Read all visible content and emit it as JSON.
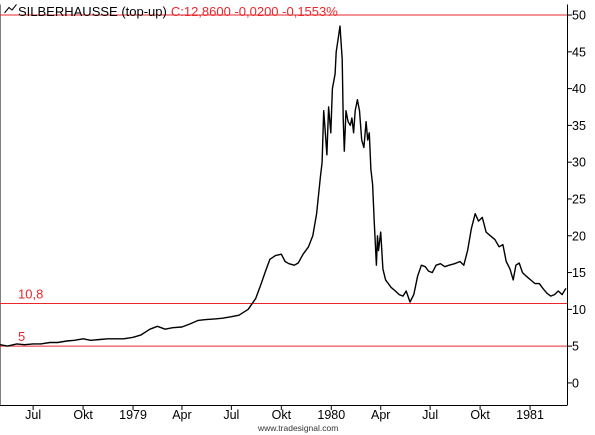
{
  "header": {
    "symbol": "SILBERHAUSSE (top-up)",
    "quote": "C:12,8600 -0,0200 -0,1553%",
    "symbol_color": "#000000",
    "quote_color": "#e8272c",
    "icon": "line-chart-icon"
  },
  "watermark": "www.tradesignal.com",
  "colors": {
    "line": "#000000",
    "hline": "#e8272c",
    "background": "#ffffff"
  },
  "chart_data": {
    "type": "line",
    "title": "SILBERHAUSSE (top-up)",
    "ylim": [
      -3,
      51.5
    ],
    "yticks": [
      {
        "label": "50",
        "value": 50
      },
      {
        "label": "45",
        "value": 45
      },
      {
        "label": "40",
        "value": 40
      },
      {
        "label": "35",
        "value": 35
      },
      {
        "label": "30",
        "value": 30
      },
      {
        "label": "25",
        "value": 25
      },
      {
        "label": "20",
        "value": 20
      },
      {
        "label": "15",
        "value": 15
      },
      {
        "label": "10",
        "value": 10
      },
      {
        "label": "5",
        "value": 5
      },
      {
        "label": "0",
        "value": 0
      }
    ],
    "x_range": [
      "1978-05-01",
      "1981-03-10"
    ],
    "xticks": [
      {
        "label": "Jul",
        "date": "1978-07-01"
      },
      {
        "label": "Okt",
        "date": "1978-10-01"
      },
      {
        "label": "1979",
        "date": "1979-01-01"
      },
      {
        "label": "Apr",
        "date": "1979-04-01"
      },
      {
        "label": "Jul",
        "date": "1979-07-01"
      },
      {
        "label": "Okt",
        "date": "1979-10-01"
      },
      {
        "label": "1980",
        "date": "1980-01-01"
      },
      {
        "label": "Apr",
        "date": "1980-04-01"
      },
      {
        "label": "Jul",
        "date": "1980-07-01"
      },
      {
        "label": "Okt",
        "date": "1980-10-01"
      },
      {
        "label": "1981",
        "date": "1981-01-01"
      }
    ],
    "hlines": [
      {
        "label": "",
        "value": 50
      },
      {
        "label": "10,8",
        "value": 10.8
      },
      {
        "label": "5",
        "value": 5
      }
    ],
    "series": [
      {
        "points": [
          [
            "1978-05-01",
            5.2
          ],
          [
            "1978-05-15",
            5.0
          ],
          [
            "1978-06-01",
            5.3
          ],
          [
            "1978-06-15",
            5.2
          ],
          [
            "1978-07-01",
            5.3
          ],
          [
            "1978-07-15",
            5.3
          ],
          [
            "1978-08-01",
            5.5
          ],
          [
            "1978-08-15",
            5.5
          ],
          [
            "1978-09-01",
            5.7
          ],
          [
            "1978-09-15",
            5.8
          ],
          [
            "1978-10-01",
            6.0
          ],
          [
            "1978-10-15",
            5.8
          ],
          [
            "1978-11-01",
            5.9
          ],
          [
            "1978-11-15",
            6.0
          ],
          [
            "1978-12-01",
            6.0
          ],
          [
            "1978-12-15",
            6.0
          ],
          [
            "1979-01-01",
            6.2
          ],
          [
            "1979-01-15",
            6.5
          ],
          [
            "1979-02-01",
            7.3
          ],
          [
            "1979-02-15",
            7.7
          ],
          [
            "1979-03-01",
            7.3
          ],
          [
            "1979-03-15",
            7.5
          ],
          [
            "1979-04-01",
            7.6
          ],
          [
            "1979-04-15",
            8.0
          ],
          [
            "1979-05-01",
            8.5
          ],
          [
            "1979-05-15",
            8.6
          ],
          [
            "1979-06-01",
            8.7
          ],
          [
            "1979-06-15",
            8.8
          ],
          [
            "1979-07-01",
            9.0
          ],
          [
            "1979-07-15",
            9.2
          ],
          [
            "1979-08-01",
            10.0
          ],
          [
            "1979-08-15",
            11.5
          ],
          [
            "1979-08-25",
            13.5
          ],
          [
            "1979-09-01",
            15.0
          ],
          [
            "1979-09-10",
            16.8
          ],
          [
            "1979-09-20",
            17.3
          ],
          [
            "1979-10-01",
            17.5
          ],
          [
            "1979-10-08",
            16.5
          ],
          [
            "1979-10-15",
            16.2
          ],
          [
            "1979-10-25",
            16.0
          ],
          [
            "1979-11-01",
            16.3
          ],
          [
            "1979-11-10",
            17.5
          ],
          [
            "1979-11-20",
            18.5
          ],
          [
            "1979-11-28",
            20.0
          ],
          [
            "1979-12-05",
            23.0
          ],
          [
            "1979-12-12",
            28.0
          ],
          [
            "1979-12-15",
            30.0
          ],
          [
            "1979-12-18",
            37.0
          ],
          [
            "1979-12-20",
            35.0
          ],
          [
            "1979-12-24",
            31.0
          ],
          [
            "1979-12-27",
            37.5
          ],
          [
            "1979-12-31",
            34.0
          ],
          [
            "1980-01-03",
            40.0
          ],
          [
            "1980-01-08",
            42.0
          ],
          [
            "1980-01-10",
            45.0
          ],
          [
            "1980-01-14",
            47.0
          ],
          [
            "1980-01-17",
            48.5
          ],
          [
            "1980-01-21",
            44.0
          ],
          [
            "1980-01-23",
            36.0
          ],
          [
            "1980-01-25",
            31.5
          ],
          [
            "1980-01-28",
            37.0
          ],
          [
            "1980-02-01",
            35.5
          ],
          [
            "1980-02-05",
            35.0
          ],
          [
            "1980-02-08",
            36.0
          ],
          [
            "1980-02-11",
            34.0
          ],
          [
            "1980-02-14",
            37.0
          ],
          [
            "1980-02-18",
            38.5
          ],
          [
            "1980-02-22",
            37.0
          ],
          [
            "1980-02-26",
            33.0
          ],
          [
            "1980-03-01",
            32.0
          ],
          [
            "1980-03-05",
            35.5
          ],
          [
            "1980-03-08",
            33.0
          ],
          [
            "1980-03-11",
            34.0
          ],
          [
            "1980-03-14",
            29.0
          ],
          [
            "1980-03-17",
            27.0
          ],
          [
            "1980-03-20",
            22.0
          ],
          [
            "1980-03-24",
            16.0
          ],
          [
            "1980-03-26",
            20.0
          ],
          [
            "1980-03-28",
            18.0
          ],
          [
            "1980-04-01",
            20.5
          ],
          [
            "1980-04-05",
            15.5
          ],
          [
            "1980-04-10",
            14.0
          ],
          [
            "1980-04-15",
            13.5
          ],
          [
            "1980-04-20",
            13.0
          ],
          [
            "1980-04-28",
            12.5
          ],
          [
            "1980-05-05",
            12.0
          ],
          [
            "1980-05-12",
            11.8
          ],
          [
            "1980-05-18",
            12.5
          ],
          [
            "1980-05-25",
            11.0
          ],
          [
            "1980-06-01",
            12.0
          ],
          [
            "1980-06-08",
            14.5
          ],
          [
            "1980-06-15",
            16.0
          ],
          [
            "1980-06-22",
            15.8
          ],
          [
            "1980-06-28",
            15.2
          ],
          [
            "1980-07-05",
            15.0
          ],
          [
            "1980-07-12",
            16.0
          ],
          [
            "1980-07-20",
            16.2
          ],
          [
            "1980-07-28",
            15.8
          ],
          [
            "1980-08-05",
            16.0
          ],
          [
            "1980-08-15",
            16.2
          ],
          [
            "1980-08-25",
            16.5
          ],
          [
            "1980-09-01",
            16.0
          ],
          [
            "1980-09-08",
            18.0
          ],
          [
            "1980-09-15",
            21.0
          ],
          [
            "1980-09-22",
            23.0
          ],
          [
            "1980-09-28",
            22.0
          ],
          [
            "1980-10-05",
            22.5
          ],
          [
            "1980-10-12",
            20.5
          ],
          [
            "1980-10-20",
            20.0
          ],
          [
            "1980-10-28",
            19.5
          ],
          [
            "1980-11-05",
            18.5
          ],
          [
            "1980-11-12",
            18.8
          ],
          [
            "1980-11-18",
            16.5
          ],
          [
            "1980-11-25",
            15.5
          ],
          [
            "1980-12-01",
            14.0
          ],
          [
            "1980-12-06",
            16.0
          ],
          [
            "1980-12-12",
            16.3
          ],
          [
            "1980-12-18",
            15.0
          ],
          [
            "1980-12-25",
            14.5
          ],
          [
            "1981-01-02",
            14.0
          ],
          [
            "1981-01-10",
            13.5
          ],
          [
            "1981-01-18",
            13.5
          ],
          [
            "1981-01-25",
            12.8
          ],
          [
            "1981-02-01",
            12.2
          ],
          [
            "1981-02-08",
            11.8
          ],
          [
            "1981-02-15",
            12.0
          ],
          [
            "1981-02-22",
            12.5
          ],
          [
            "1981-03-01",
            12.0
          ],
          [
            "1981-03-08",
            12.86
          ]
        ]
      }
    ]
  }
}
